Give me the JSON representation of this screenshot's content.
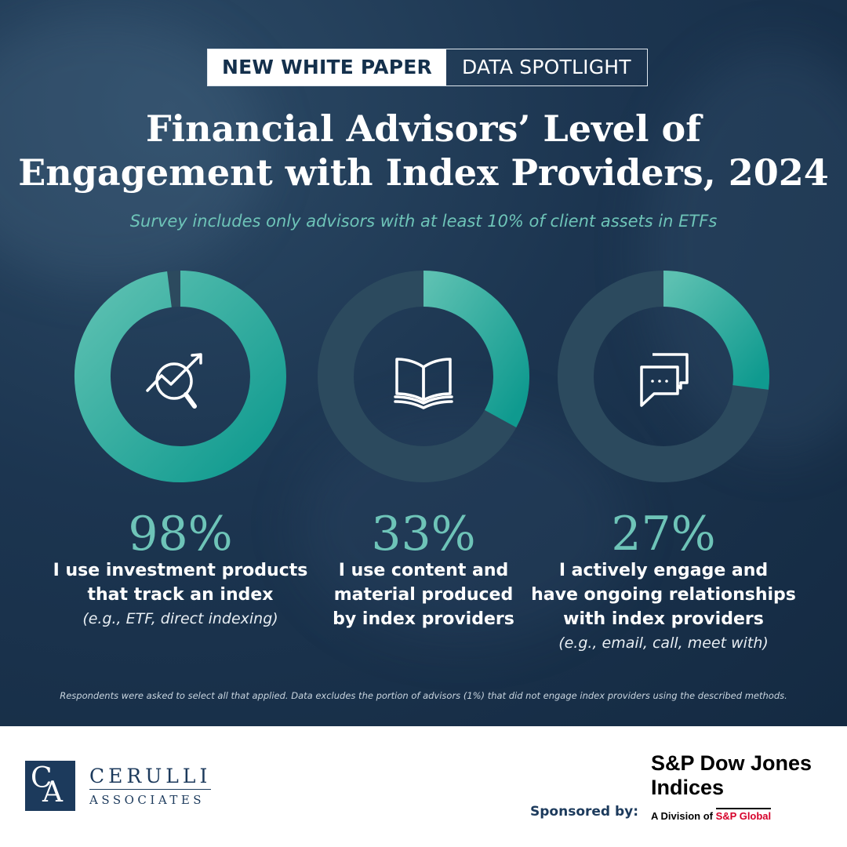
{
  "badge": {
    "left": "NEW WHITE PAPER",
    "right": "DATA SPOTLIGHT"
  },
  "title_line1": "Financial Advisors’ Level of",
  "title_line2": "Engagement with Index Providers, 2024",
  "subtitle": "Survey includes only advisors with at least 10% of client assets in ETFs",
  "chart_data": {
    "type": "pie",
    "variant": "donut",
    "unit": "%",
    "colors": {
      "filled": "#4db6a8",
      "filled_dark": "#17a095",
      "remainder": "#2c4a5e"
    },
    "items": [
      {
        "value": 98,
        "label": "98%",
        "caption": "I use investment products that track an index",
        "note": "(e.g., ETF, direct indexing)",
        "icon": "magnifier-chart-icon"
      },
      {
        "value": 33,
        "label": "33%",
        "caption": "I use content and material produced by index providers",
        "note": "",
        "icon": "open-book-icon"
      },
      {
        "value": 27,
        "label": "27%",
        "caption": "I actively engage and have ongoing relationships with index providers",
        "note": "(e.g., email, call, meet with)",
        "icon": "chat-bubbles-icon"
      }
    ]
  },
  "captions": {
    "c1": [
      "I use investment products",
      "that track an index"
    ],
    "c1_note": "(e.g., ETF, direct indexing)",
    "c2": [
      "I use content and",
      "material produced",
      "by index providers"
    ],
    "c3": [
      "I actively engage and",
      "have ongoing relationships",
      "with index providers"
    ],
    "c3_note": "(e.g., email, call, meet with)"
  },
  "footnote": "Respondents were asked to select all that applied.  Data excludes the portion of advisors (1%) that did not engage index providers using the described methods.",
  "logo": {
    "mark_c": "C",
    "mark_a": "A",
    "name": "CERULLI",
    "sub": "ASSOCIATES"
  },
  "sponsor": {
    "label": "Sponsored by:",
    "name_line1": "S&P Dow Jones",
    "name_line2": "Indices",
    "division": "A Division of",
    "parent": "S&P Global"
  }
}
